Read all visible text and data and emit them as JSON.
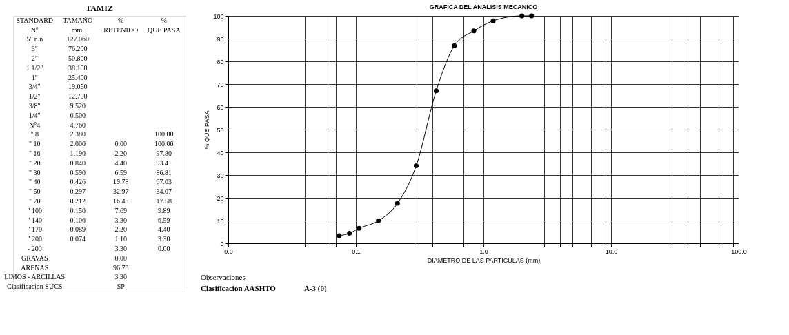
{
  "chart_data": [
    {
      "type": "other",
      "title": "TAMIZ",
      "annotations": [
        "STANDARD",
        "TAMAÑO",
        "%",
        "%",
        "N°",
        "mm.",
        "RETENIDO",
        "QUE PASA",
        "5\" n.n",
        "127.060",
        null,
        null,
        "3\"",
        "76.200",
        null,
        null,
        "2\"",
        "50.800",
        null,
        null,
        "1 1/2\"",
        "38.100",
        null,
        null,
        "1\"",
        "25.400",
        null,
        null,
        "3/4\"",
        "19.050",
        null,
        null,
        "1/2\"",
        "12.700",
        null,
        null,
        "3/8\"",
        "9.520",
        null,
        null,
        "1/4\"",
        "6.500",
        null,
        null,
        "N°4",
        "4.760",
        null,
        null,
        "\" 8",
        "2.380",
        null,
        "100.00",
        "\" 10",
        "2.000",
        "0.00",
        "100.00",
        "\" 16",
        "1.190",
        "2.20",
        "97.80",
        "\" 20",
        "0.840",
        "4.40",
        "93.41",
        "\" 30",
        "0.590",
        "6.59",
        "86.81",
        "\" 40",
        "0.426",
        "19.78",
        "67.03",
        "\" 50",
        "0.297",
        "32.97",
        "34.07",
        "\" 70",
        "0.212",
        "16.48",
        "17.58",
        "\" 100",
        "0.150",
        "7.69",
        "9.89",
        "\" 140",
        "0.106",
        "3.30",
        "6.59",
        "\" 170",
        "0.089",
        "2.20",
        "4.40",
        "\" 200",
        "0.074",
        "1.10",
        "3.30",
        "- 200",
        null,
        "3.30",
        "0.00",
        "GRAVAS",
        null,
        "0.00",
        null,
        "ARENAS",
        null,
        "96.70",
        null,
        "LIMOS - ARCILLAS",
        null,
        "3.30",
        null,
        "Clasificacion SUCS",
        null,
        "SP",
        null
      ]
    },
    {
      "type": "line",
      "title": "GRAFICA DEL ANALISIS MECANICO",
      "xlabel": "DIAMETRO DE LAS PARTICULAS  (mm)",
      "ylabel": "% QUE PASA",
      "x": [
        2.38,
        2.0,
        1.19,
        0.84,
        0.59,
        0.426,
        0.297,
        0.212,
        0.15,
        0.106,
        0.089,
        0.074
      ],
      "series": [
        {
          "color": "#000000",
          "values": [
            100,
            100,
            97.8,
            93.41,
            86.81,
            67.03,
            34.07,
            17.58,
            9.89,
            6.59,
            4.4,
            3.3
          ]
        }
      ],
      "log": "x",
      "xlim": [
        0.01,
        100
      ],
      "xticks": [
        {
          "value": 0.01,
          "label": "0.0"
        },
        {
          "value": 0.04,
          "label": null
        },
        {
          "value": 0.06,
          "label": null
        },
        {
          "value": 0.07,
          "label": null
        },
        {
          "value": 0.1,
          "label": "0.1"
        },
        {
          "value": 0.3,
          "label": null
        },
        {
          "value": 0.4,
          "label": null
        },
        {
          "value": 0.7,
          "label": null
        },
        {
          "value": 1,
          "label": "1.0"
        },
        {
          "value": 3,
          "label": null
        },
        {
          "value": 4,
          "label": null
        },
        {
          "value": 5,
          "label": null
        },
        {
          "value": 7,
          "label": null
        },
        {
          "value": 9,
          "label": null
        },
        {
          "value": 10,
          "label": "10.0"
        },
        {
          "value": 30,
          "label": null
        },
        {
          "value": 40,
          "label": null
        },
        {
          "value": 50,
          "label": null
        },
        {
          "value": 70,
          "label": null
        },
        {
          "value": 90,
          "label": null
        },
        {
          "value": 100,
          "label": "100.0"
        }
      ],
      "ylim": [
        0,
        100
      ],
      "yticks": [
        0,
        10,
        20,
        30,
        40,
        50,
        60,
        70,
        80,
        90,
        100
      ],
      "grid": true,
      "marker": "circle",
      "line_style": "solid",
      "annotations": [
        "Observaciones",
        "Clasificacion AASHTO",
        "A-3 (0)"
      ]
    }
  ]
}
